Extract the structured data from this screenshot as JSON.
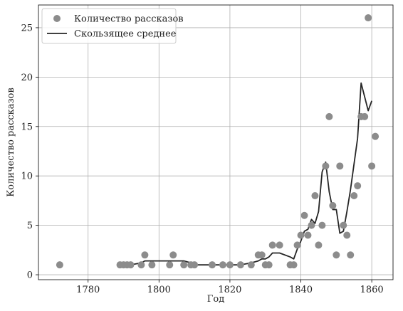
{
  "chart_data": {
    "type": "scatter",
    "title": "",
    "xlabel": "Год",
    "ylabel": "Количество рассказов",
    "xlim": [
      1766,
      1866
    ],
    "ylim": [
      -0.5,
      27.3
    ],
    "xticks": [
      1780,
      1800,
      1820,
      1840,
      1860
    ],
    "yticks": [
      0,
      5,
      10,
      15,
      20,
      25
    ],
    "grid": true,
    "legend_position": "top-left",
    "colors": {
      "points": "#8c8c8c",
      "line": "#262626"
    },
    "series": [
      {
        "name": "Количество рассказов",
        "kind": "scatter",
        "x": [
          1772,
          1789,
          1790,
          1791,
          1792,
          1795,
          1796,
          1798,
          1803,
          1804,
          1807,
          1809,
          1810,
          1815,
          1818,
          1820,
          1823,
          1826,
          1828,
          1829,
          1830,
          1831,
          1832,
          1834,
          1837,
          1838,
          1839,
          1840,
          1841,
          1842,
          1843,
          1844,
          1845,
          1846,
          1847,
          1848,
          1849,
          1850,
          1851,
          1852,
          1853,
          1854,
          1855,
          1856,
          1857,
          1858,
          1859,
          1860,
          1861
        ],
        "y": [
          1,
          1,
          1,
          1,
          1,
          1,
          2,
          1,
          1,
          2,
          1,
          1,
          1,
          1,
          1,
          1,
          1,
          1,
          2,
          2,
          1,
          1,
          3,
          3,
          1,
          1,
          3,
          4,
          6,
          4,
          5,
          8,
          3,
          5,
          11,
          16,
          7,
          2,
          11,
          5,
          4,
          2,
          8,
          9,
          16,
          16,
          26,
          11,
          14
        ]
      },
      {
        "name": "Скользящее среднее",
        "kind": "line",
        "x": [
          1789,
          1790,
          1791,
          1792,
          1795,
          1796,
          1798,
          1803,
          1804,
          1807,
          1809,
          1810,
          1815,
          1818,
          1820,
          1823,
          1826,
          1828,
          1829,
          1830,
          1831,
          1832,
          1834,
          1837,
          1838,
          1839,
          1840,
          1841,
          1842,
          1843,
          1844,
          1845,
          1846,
          1847,
          1848,
          1849,
          1850,
          1851,
          1852,
          1853,
          1854,
          1855,
          1856,
          1857,
          1858,
          1859,
          1860
        ],
        "y": [
          1,
          1,
          1,
          1,
          1.2,
          1.4,
          1.4,
          1.4,
          1.4,
          1.4,
          1.2,
          1,
          1,
          1,
          1,
          1,
          1.2,
          1.4,
          1.6,
          1.6,
          1.8,
          2.2,
          2.2,
          1.8,
          1.6,
          2.6,
          3.4,
          4.4,
          4.6,
          5.6,
          5.2,
          6.4,
          10.4,
          11.4,
          8.4,
          6.6,
          6.6,
          4.2,
          4.4,
          6.4,
          8.6,
          11.2,
          13.8,
          19.4,
          18,
          16.6,
          17.6
        ]
      }
    ]
  }
}
